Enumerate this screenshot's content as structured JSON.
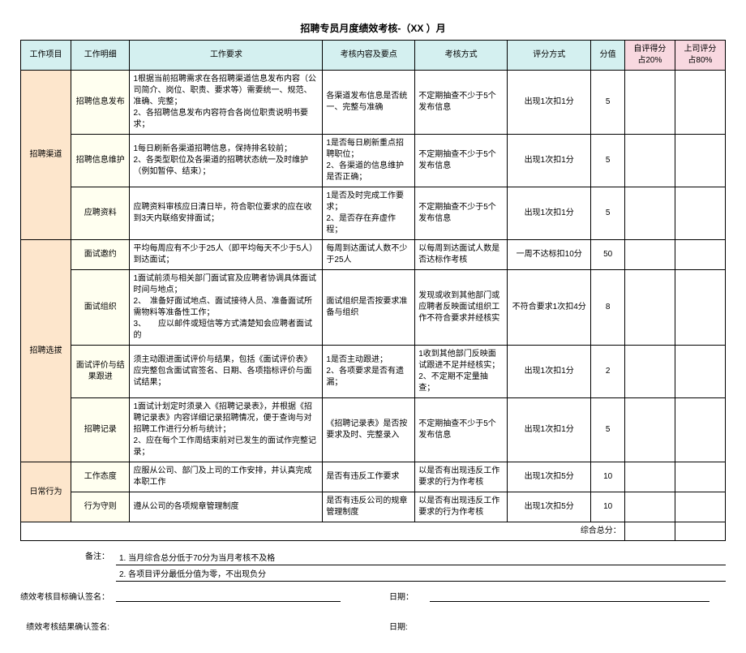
{
  "title": "招聘专员月度绩效考核-（XX ）月",
  "headers": {
    "col1": "工作项目",
    "col2": "工作明细",
    "col3": "工作要求",
    "col4": "考核内容及要点",
    "col5": "考核方式",
    "col6": "评分方式",
    "col7": "分值",
    "col8_a": "自评得分",
    "col8_b": "占20%",
    "col9_a": "上司评分",
    "col9_b": "占80%"
  },
  "cats": {
    "c1": "招聘渠道",
    "c2": "招聘选拔",
    "c3": "日常行为"
  },
  "rows": {
    "r1": {
      "sub": "招聘信息发布",
      "req": "1根据当前招聘需求在各招聘渠道信息发布内容（公司简介、岗位、职责、要求等）需要统一、规范、准确、完整；\n2、各招聘信息发布内容符合各岗位职责说明书要　求；",
      "chk": "各渠道发布信息是否统一、完整与准确",
      "mode": "不定期抽查不少于5个发布信息",
      "score": "出现1次扣1分",
      "val": "5"
    },
    "r2": {
      "sub": "招聘信息维护",
      "req": "1每日刷新各渠道招聘信息，保持排名较前；\n2、各类型职位及各渠道的招聘状态统一及时维护（例如暂停、结束）；",
      "chk": "1是否每日刷新重点招聘职位；\n2、各渠道的信息维护是否正确；",
      "mode": "不定期抽查不少于5个发布信息",
      "score": "出现1次扣1分",
      "val": "5"
    },
    "r3": {
      "sub": "应聘资料",
      "req": "应聘资料审核应日清日毕，符合职位要求的应在收到3天内联络安排面试；",
      "chk": "1是否及时完成工作要求；\n2、是否存在弃虚作程；",
      "mode": "不定期抽查不少于5个发布信息",
      "score": "出现1次扣1分",
      "val": "5"
    },
    "r4": {
      "sub": "面试邀约",
      "req": "平均每周应有不少于25人（即平均每天不少于5人）到达面试；",
      "chk": "每周到达面试人数不少于25人",
      "mode": "以每周到达面试人数是否达标作考核",
      "score": "一周不达标扣10分",
      "val": "50"
    },
    "r5": {
      "sub": "面试组织",
      "req": "1面试前须与相关部门面试官及应聘者协调具体面试时间与地点；\n2、　准备好面试地点、面试接待人员、准备面试所需物料等准备性工作；\n3、　　应以邮件或短信等方式清楚知会应聘者面试的",
      "chk": "面试组织是否按要求准备与组织",
      "mode": "发现或收到其他部门或应聘者反映面试组织工作不符合要求并经核实",
      "score": "不符合要求1次扣4分",
      "val": "8"
    },
    "r6": {
      "sub": "面试评价与结果跟进",
      "req": "须主动跟进面试评价与结果，包括《面试评价表》应完整包含面试官签名、日期、各项指标评价与面试结果；",
      "chk": "1是否主动跟进；\n2、各项要求是否有遗漏；",
      "mode": "1收到其他部门反映面试跟进不足并经核实；\n2、不定期不定量抽查；",
      "score": "出现1次扣1分",
      "val": "2"
    },
    "r7": {
      "sub": "招聘记录",
      "req": "1面试计划定时须录入《招聘记录表》，并根据《招聘记录表》内容详细记录招聘情况，便于查询与对招聘工作进行分析与统计；\n2、应在每个工作周结束前对已发生的面试作完整记录；",
      "chk": "《招聘记录表》是否按要求及时、完整录入",
      "mode": "不定期抽查不少于5个发布信息",
      "score": "出现1次扣1分",
      "val": "5"
    },
    "r8": {
      "sub": "工作态度",
      "req": "应服从公司、部门及上司的工作安排，并认真完成本职工作",
      "chk": "是否有违反工作要求",
      "mode": "以是否有出现违反工作要求的行为作考核",
      "score": "出现1次扣5分",
      "val": "10"
    },
    "r9": {
      "sub": "行为守则",
      "req": "遵从公司的各项规章管理制度",
      "chk": "是否有违反公司的规章管理制度",
      "mode": "以是否有出现违反工作要求的行为作考核",
      "score": "出现1次扣5分",
      "val": "10"
    }
  },
  "total_label": "综合总分：",
  "notes_label": "备注：",
  "notes": {
    "n1": "1. 当月综合总分低于70分为当月考核不及格",
    "n2": "2. 各项目评分最低分值为零，不出现负分"
  },
  "sig1": "绩效考核目标确认签名：",
  "sig2": "绩效考核结果确认签名:",
  "date_label": "日期：",
  "date_label2": "日期:",
  "colors": {
    "header_cyan": "#d4f0f0",
    "header_pink": "#f8d8e0",
    "cat_peach": "#fde6cc",
    "sub_yellow": "#fffff0"
  },
  "col_widths": [
    "60",
    "70",
    "230",
    "110",
    "110",
    "100",
    "40",
    "60",
    "60"
  ]
}
